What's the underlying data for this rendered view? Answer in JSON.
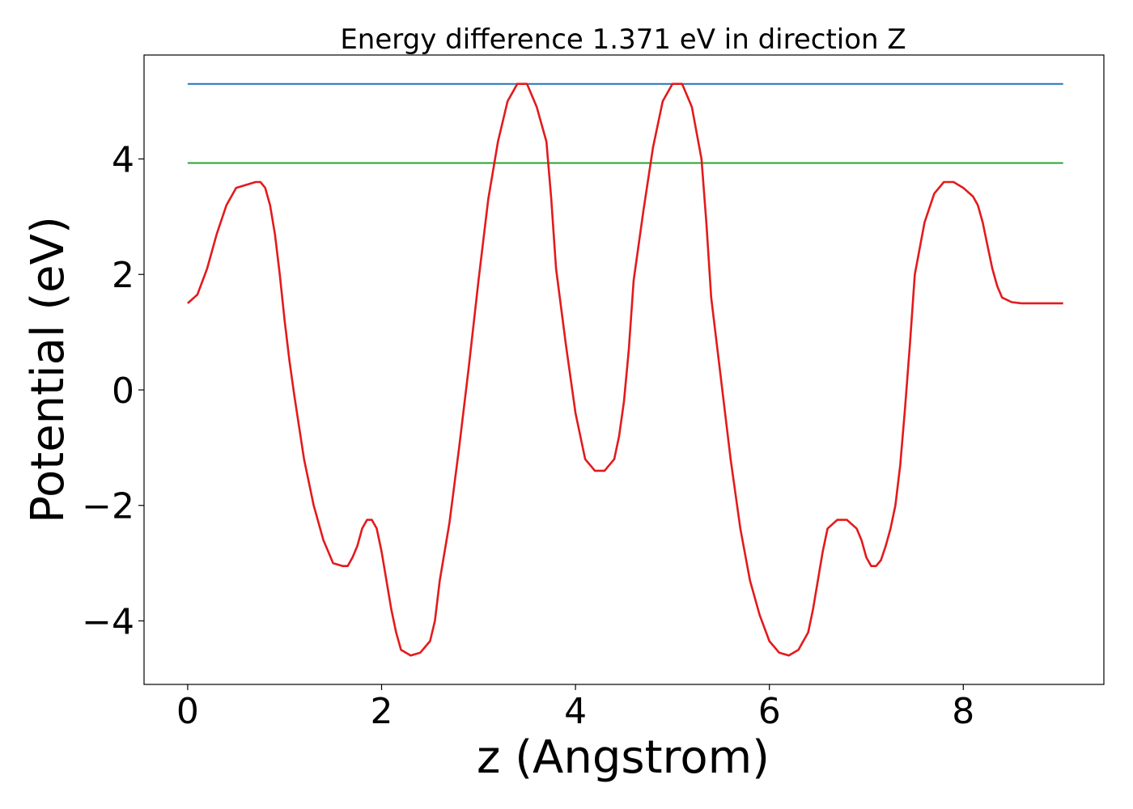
{
  "chart_data": {
    "type": "line",
    "title": "Energy difference 1.371 eV in direction Z",
    "xlabel": "z (Angstrom)",
    "ylabel": "Potential (eV)",
    "xlim": [
      -0.45,
      9.45
    ],
    "ylim": [
      -5.1,
      5.8
    ],
    "x_ticks": [
      0,
      2,
      4,
      6,
      8
    ],
    "x_tick_labels": [
      "0",
      "2",
      "4",
      "6",
      "8"
    ],
    "y_ticks": [
      -4,
      -2,
      0,
      2,
      4
    ],
    "y_tick_labels": [
      "−4",
      "−2",
      "0",
      "2",
      "4"
    ],
    "grid": false,
    "legend": "none",
    "series": [
      {
        "kind": "hline",
        "color": "#1f77b4",
        "x_range": [
          0,
          9.03
        ],
        "y": 5.3
      },
      {
        "kind": "hline",
        "color": "#2ca02c",
        "x_range": [
          0,
          9.03
        ],
        "y": 3.93
      },
      {
        "kind": "curve",
        "color": "#e31a1c",
        "x": [
          0,
          0.1,
          0.2,
          0.3,
          0.4,
          0.5,
          0.6,
          0.7,
          0.75,
          0.8,
          0.85,
          0.9,
          0.95,
          1.0,
          1.05,
          1.1,
          1.2,
          1.3,
          1.4,
          1.5,
          1.6,
          1.65,
          1.7,
          1.75,
          1.8,
          1.85,
          1.9,
          1.95,
          2.0,
          2.05,
          2.1,
          2.15,
          2.2,
          2.3,
          2.4,
          2.5,
          2.55,
          2.6,
          2.7,
          2.8,
          2.9,
          3.0,
          3.1,
          3.2,
          3.3,
          3.4,
          3.5,
          3.6,
          3.7,
          3.75,
          3.8,
          3.9,
          4.0,
          4.1,
          4.2,
          4.3,
          4.4,
          4.45,
          4.5,
          4.55,
          4.6,
          4.7,
          4.8,
          4.9,
          5.0,
          5.1,
          5.2,
          5.3,
          5.35,
          5.4,
          5.5,
          5.6,
          5.7,
          5.8,
          5.9,
          6.0,
          6.1,
          6.2,
          6.3,
          6.4,
          6.45,
          6.5,
          6.55,
          6.6,
          6.7,
          6.8,
          6.9,
          6.95,
          7.0,
          7.05,
          7.1,
          7.15,
          7.2,
          7.25,
          7.3,
          7.35,
          7.4,
          7.45,
          7.5,
          7.6,
          7.7,
          7.8,
          7.9,
          8.0,
          8.1,
          8.15,
          8.2,
          8.25,
          8.3,
          8.35,
          8.4,
          8.5,
          8.6,
          8.7,
          8.8,
          8.9,
          9.0,
          9.03
        ],
        "y": [
          1.5,
          1.65,
          2.1,
          2.7,
          3.2,
          3.5,
          3.55,
          3.6,
          3.6,
          3.5,
          3.2,
          2.7,
          2.0,
          1.2,
          0.5,
          -0.1,
          -1.2,
          -2.0,
          -2.6,
          -3.0,
          -3.05,
          -3.05,
          -2.9,
          -2.7,
          -2.4,
          -2.25,
          -2.25,
          -2.4,
          -2.8,
          -3.3,
          -3.8,
          -4.2,
          -4.5,
          -4.6,
          -4.55,
          -4.35,
          -4.0,
          -3.3,
          -2.3,
          -1.0,
          0.4,
          1.9,
          3.3,
          4.3,
          5.0,
          5.3,
          5.3,
          4.9,
          4.3,
          3.3,
          2.1,
          0.8,
          -0.4,
          -1.2,
          -1.4,
          -1.4,
          -1.2,
          -0.8,
          -0.2,
          0.7,
          1.9,
          3.1,
          4.2,
          5.0,
          5.3,
          5.3,
          4.9,
          4.0,
          2.9,
          1.6,
          0.2,
          -1.2,
          -2.4,
          -3.3,
          -3.9,
          -4.35,
          -4.55,
          -4.6,
          -4.5,
          -4.2,
          -3.8,
          -3.3,
          -2.8,
          -2.4,
          -2.25,
          -2.25,
          -2.4,
          -2.6,
          -2.9,
          -3.05,
          -3.05,
          -2.95,
          -2.7,
          -2.4,
          -2.0,
          -1.3,
          -0.3,
          0.8,
          2.0,
          2.9,
          3.4,
          3.6,
          3.6,
          3.5,
          3.35,
          3.2,
          2.9,
          2.5,
          2.1,
          1.8,
          1.6,
          1.52,
          1.5,
          1.5,
          1.5,
          1.5,
          1.5,
          1.5
        ]
      }
    ]
  }
}
